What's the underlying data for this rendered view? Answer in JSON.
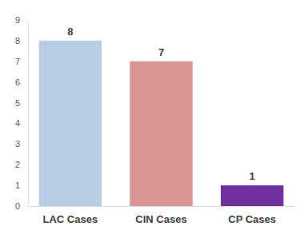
{
  "chart_data": {
    "type": "bar",
    "categories": [
      "LAC Cases",
      "CIN Cases",
      "CP Cases"
    ],
    "values": [
      8,
      7,
      1
    ],
    "colors": [
      "#b8cce4",
      "#d99694",
      "#7030a0"
    ],
    "ylim": [
      0,
      9
    ],
    "yticks": [
      0,
      1,
      2,
      3,
      4,
      5,
      6,
      7,
      8,
      9
    ],
    "data_labels": true,
    "grid": false
  }
}
